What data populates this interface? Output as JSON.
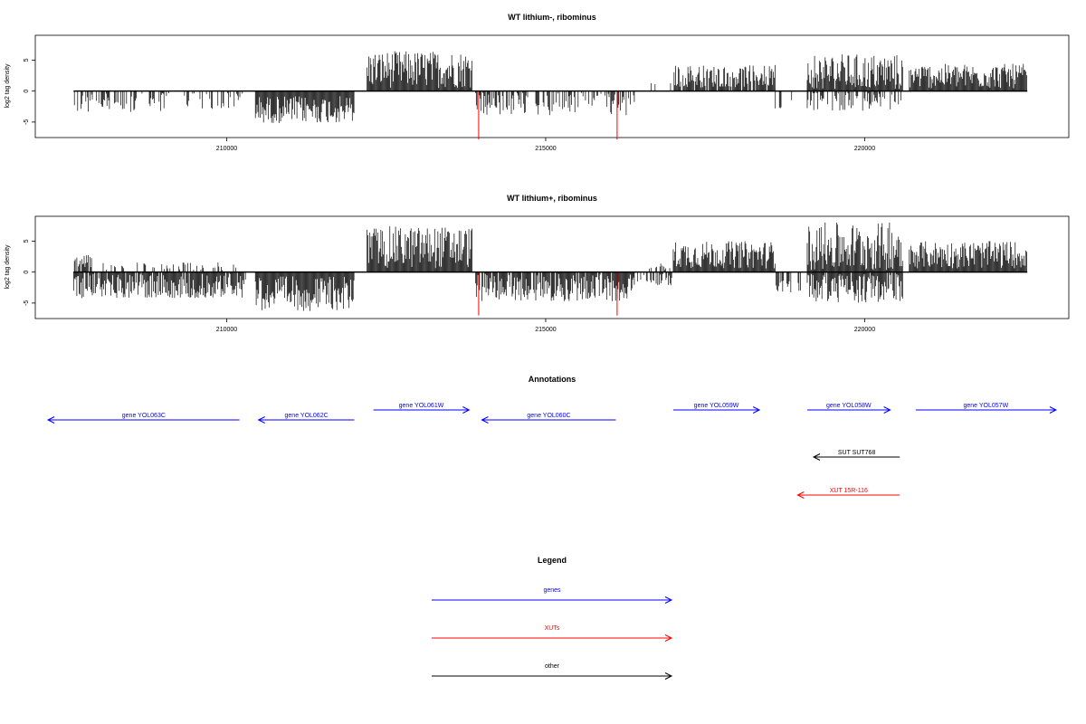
{
  "chart_data": [
    {
      "type": "bar",
      "title": "WT lithium-, ribominus",
      "xlabel": "",
      "ylabel": "log2 tag density",
      "xlim": [
        207000,
        223200
      ],
      "ylim": [
        -7.5,
        9.0
      ],
      "xticks": [
        210000,
        215000,
        220000
      ],
      "yticks": [
        5,
        0,
        -5
      ],
      "xtick_labels": [
        "210000",
        "215000",
        "220000"
      ],
      "ytick_labels": [
        "5",
        "0",
        "-5"
      ],
      "grid": false,
      "baseline_range": [
        207600,
        222550
      ],
      "highlight_positions": [
        213950,
        216120
      ],
      "highlight_values": [
        -7.8,
        -7.8
      ],
      "highlight_color": "#ff0000",
      "bar_color": "#000000",
      "segments": [
        {
          "from": 207600,
          "to": 209100,
          "strand": "neg",
          "mean": -1.8,
          "spread": 1.8,
          "density": 0.45
        },
        {
          "from": 209300,
          "to": 210300,
          "strand": "neg",
          "mean": -1.5,
          "spread": 1.5,
          "density": 0.35
        },
        {
          "from": 210450,
          "to": 212000,
          "strand": "neg",
          "mean": -3.0,
          "spread": 2.2,
          "density": 1.0
        },
        {
          "from": 212200,
          "to": 213850,
          "strand": "pos",
          "mean": 3.5,
          "spread": 3.0,
          "density": 1.0
        },
        {
          "from": 213900,
          "to": 216400,
          "strand": "neg",
          "mean": -2.0,
          "spread": 2.0,
          "density": 0.5
        },
        {
          "from": 216600,
          "to": 217000,
          "strand": "pos",
          "mean": 1.2,
          "spread": 0.4,
          "density": 0.15
        },
        {
          "from": 217000,
          "to": 218600,
          "strand": "pos",
          "mean": 2.4,
          "spread": 1.8,
          "density": 0.9
        },
        {
          "from": 218600,
          "to": 219000,
          "strand": "neg",
          "mean": -2.2,
          "spread": 1.0,
          "density": 0.3
        },
        {
          "from": 219100,
          "to": 220600,
          "strand": "pos",
          "mean": 3.0,
          "spread": 3.0,
          "density": 1.0
        },
        {
          "from": 219100,
          "to": 220600,
          "strand": "neg",
          "mean": -1.6,
          "spread": 1.6,
          "density": 0.5
        },
        {
          "from": 220700,
          "to": 222550,
          "strand": "pos",
          "mean": 2.4,
          "spread": 2.0,
          "density": 1.0
        }
      ]
    },
    {
      "type": "bar",
      "title": "WT lithium+, ribominus",
      "xlabel": "",
      "ylabel": "log2 tag density",
      "xlim": [
        207000,
        223200
      ],
      "ylim": [
        -7.5,
        9.0
      ],
      "xticks": [
        210000,
        215000,
        220000
      ],
      "yticks": [
        5,
        0,
        -5
      ],
      "xtick_labels": [
        "210000",
        "215000",
        "220000"
      ],
      "ytick_labels": [
        "5",
        "0",
        "-5"
      ],
      "grid": false,
      "baseline_range": [
        207600,
        222550
      ],
      "highlight_positions": [
        213950,
        216120
      ],
      "highlight_values": [
        -7.0,
        -7.0
      ],
      "highlight_color": "#ff0000",
      "bar_color": "#000000",
      "segments": [
        {
          "from": 207600,
          "to": 207900,
          "strand": "pos",
          "mean": 1.8,
          "spread": 1.0,
          "density": 0.8
        },
        {
          "from": 207600,
          "to": 210300,
          "strand": "neg",
          "mean": -2.2,
          "spread": 2.0,
          "density": 0.9
        },
        {
          "from": 208000,
          "to": 210200,
          "strand": "pos",
          "mean": 0.8,
          "spread": 0.8,
          "density": 0.25
        },
        {
          "from": 210450,
          "to": 212000,
          "strand": "neg",
          "mean": -3.5,
          "spread": 2.8,
          "density": 1.0
        },
        {
          "from": 212200,
          "to": 213850,
          "strand": "pos",
          "mean": 4.0,
          "spread": 3.4,
          "density": 1.0
        },
        {
          "from": 213900,
          "to": 216400,
          "strand": "neg",
          "mean": -2.5,
          "spread": 2.2,
          "density": 0.9
        },
        {
          "from": 216400,
          "to": 217000,
          "strand": "neg",
          "mean": -1.2,
          "spread": 1.0,
          "density": 0.4
        },
        {
          "from": 216600,
          "to": 217000,
          "strand": "pos",
          "mean": 0.8,
          "spread": 0.6,
          "density": 0.3
        },
        {
          "from": 217000,
          "to": 218600,
          "strand": "pos",
          "mean": 2.8,
          "spread": 2.2,
          "density": 1.0
        },
        {
          "from": 218600,
          "to": 219000,
          "strand": "neg",
          "mean": -2.5,
          "spread": 1.2,
          "density": 0.6
        },
        {
          "from": 219100,
          "to": 220600,
          "strand": "pos",
          "mean": 4.0,
          "spread": 4.0,
          "density": 1.0
        },
        {
          "from": 219100,
          "to": 220600,
          "strand": "neg",
          "mean": -2.6,
          "spread": 2.4,
          "density": 0.9
        },
        {
          "from": 220700,
          "to": 222550,
          "strand": "pos",
          "mean": 2.8,
          "spread": 2.2,
          "density": 1.0
        }
      ]
    }
  ],
  "annotations": {
    "title": "Annotations",
    "items": [
      {
        "label": "gene YOL063C",
        "start": 210200,
        "end": 207200,
        "row": 1,
        "color": "#0000ff"
      },
      {
        "label": "gene YOL062C",
        "start": 212000,
        "end": 210500,
        "row": 1,
        "color": "#0000ff"
      },
      {
        "label": "gene YOL061W",
        "start": 212300,
        "end": 213800,
        "row": 0,
        "color": "#0000ff"
      },
      {
        "label": "gene YOL060C",
        "start": 216100,
        "end": 214000,
        "row": 1,
        "color": "#0000ff"
      },
      {
        "label": "gene YOL059W",
        "start": 217000,
        "end": 218350,
        "row": 0,
        "color": "#0000ff"
      },
      {
        "label": "gene YOL058W",
        "start": 219100,
        "end": 220400,
        "row": 0,
        "color": "#0000ff"
      },
      {
        "label": "gene YOL057W",
        "start": 220800,
        "end": 223000,
        "row": 0,
        "color": "#0000ff"
      },
      {
        "label": "SUT SUT768",
        "start": 220550,
        "end": 219200,
        "row": 2,
        "color": "#000000"
      },
      {
        "label": "XUT 15R-116",
        "start": 220550,
        "end": 218950,
        "row": 3,
        "color": "#ff0000"
      }
    ]
  },
  "legend": {
    "title": "Legend",
    "items": [
      {
        "label": "genes",
        "color": "#0000ff"
      },
      {
        "label": "XUTs",
        "color": "#ff0000"
      },
      {
        "label": "other",
        "color": "#000000"
      }
    ]
  }
}
